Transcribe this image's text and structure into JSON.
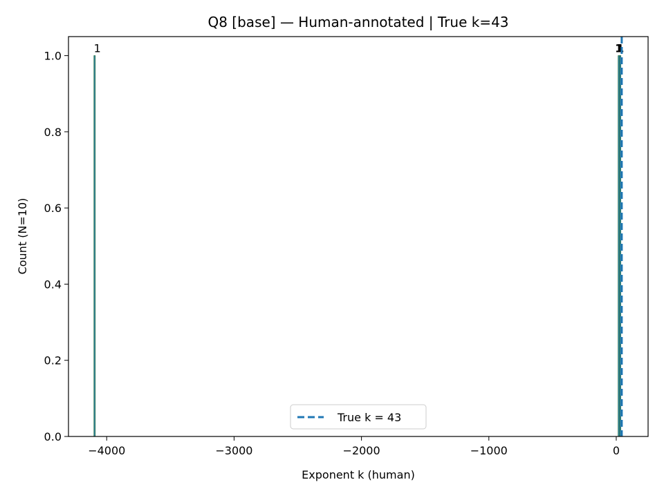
{
  "chart_data": {
    "type": "bar",
    "title": "Q8 [base] — Human-annotated | True k=43",
    "xlabel": "Exponent k (human)",
    "ylabel": "Count (N=10)",
    "xlim": [
      -4300,
      250
    ],
    "ylim": [
      0,
      1.05
    ],
    "xticks": [
      -4000,
      -3000,
      -2000,
      -1000,
      0
    ],
    "xtick_labels": [
      "−4000",
      "−3000",
      "−2000",
      "−1000",
      "0"
    ],
    "yticks": [
      0.0,
      0.2,
      0.4,
      0.6,
      0.8,
      1.0
    ],
    "ytick_labels": [
      "0.0",
      "0.2",
      "0.4",
      "0.6",
      "0.8",
      "1.0"
    ],
    "bins": [
      {
        "x_start": -4100,
        "x_end": -4090,
        "count": 1,
        "label": "1"
      },
      {
        "x_start": 15,
        "x_end": 25,
        "count": 1,
        "label": "1"
      },
      {
        "x_start": 26,
        "x_end": 36,
        "count": 1,
        "label": "1"
      }
    ],
    "reference_line": {
      "x": 43,
      "label": "True k = 43",
      "style": "dashed",
      "color": "#1f77b4"
    },
    "bar_color": "#1f77b4",
    "bar_edge_color": "#1a6b3a",
    "legend_position": "bottom-center",
    "grid": false
  }
}
